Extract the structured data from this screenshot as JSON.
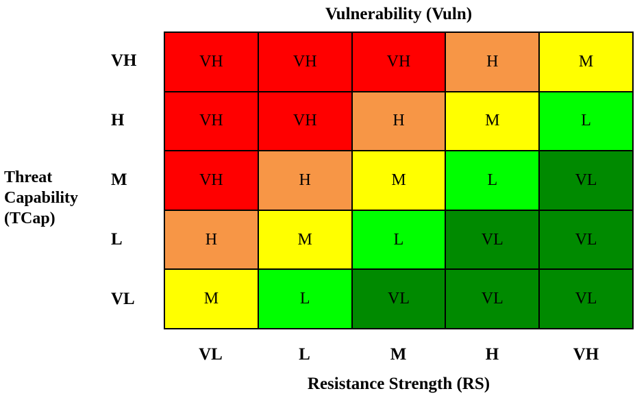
{
  "chart_data": {
    "type": "heatmap",
    "title": "Vulnerability (Vuln)",
    "xlabel": "Resistance Strength (RS)",
    "ylabel_lines": [
      "Threat",
      "Capability",
      "(TCap)"
    ],
    "x_categories": [
      "VL",
      "L",
      "M",
      "H",
      "VH"
    ],
    "y_categories": [
      "VH",
      "H",
      "M",
      "L",
      "VL"
    ],
    "cells": [
      [
        "VH",
        "VH",
        "VH",
        "H",
        "M"
      ],
      [
        "VH",
        "VH",
        "H",
        "M",
        "L"
      ],
      [
        "VH",
        "H",
        "M",
        "L",
        "VL"
      ],
      [
        "H",
        "M",
        "L",
        "VL",
        "VL"
      ],
      [
        "M",
        "L",
        "VL",
        "VL",
        "VL"
      ]
    ],
    "colors": {
      "VH": "#ff0000",
      "H": "#f79646",
      "M": "#ffff00",
      "L": "#00ff00",
      "VL": "#008a00"
    }
  }
}
